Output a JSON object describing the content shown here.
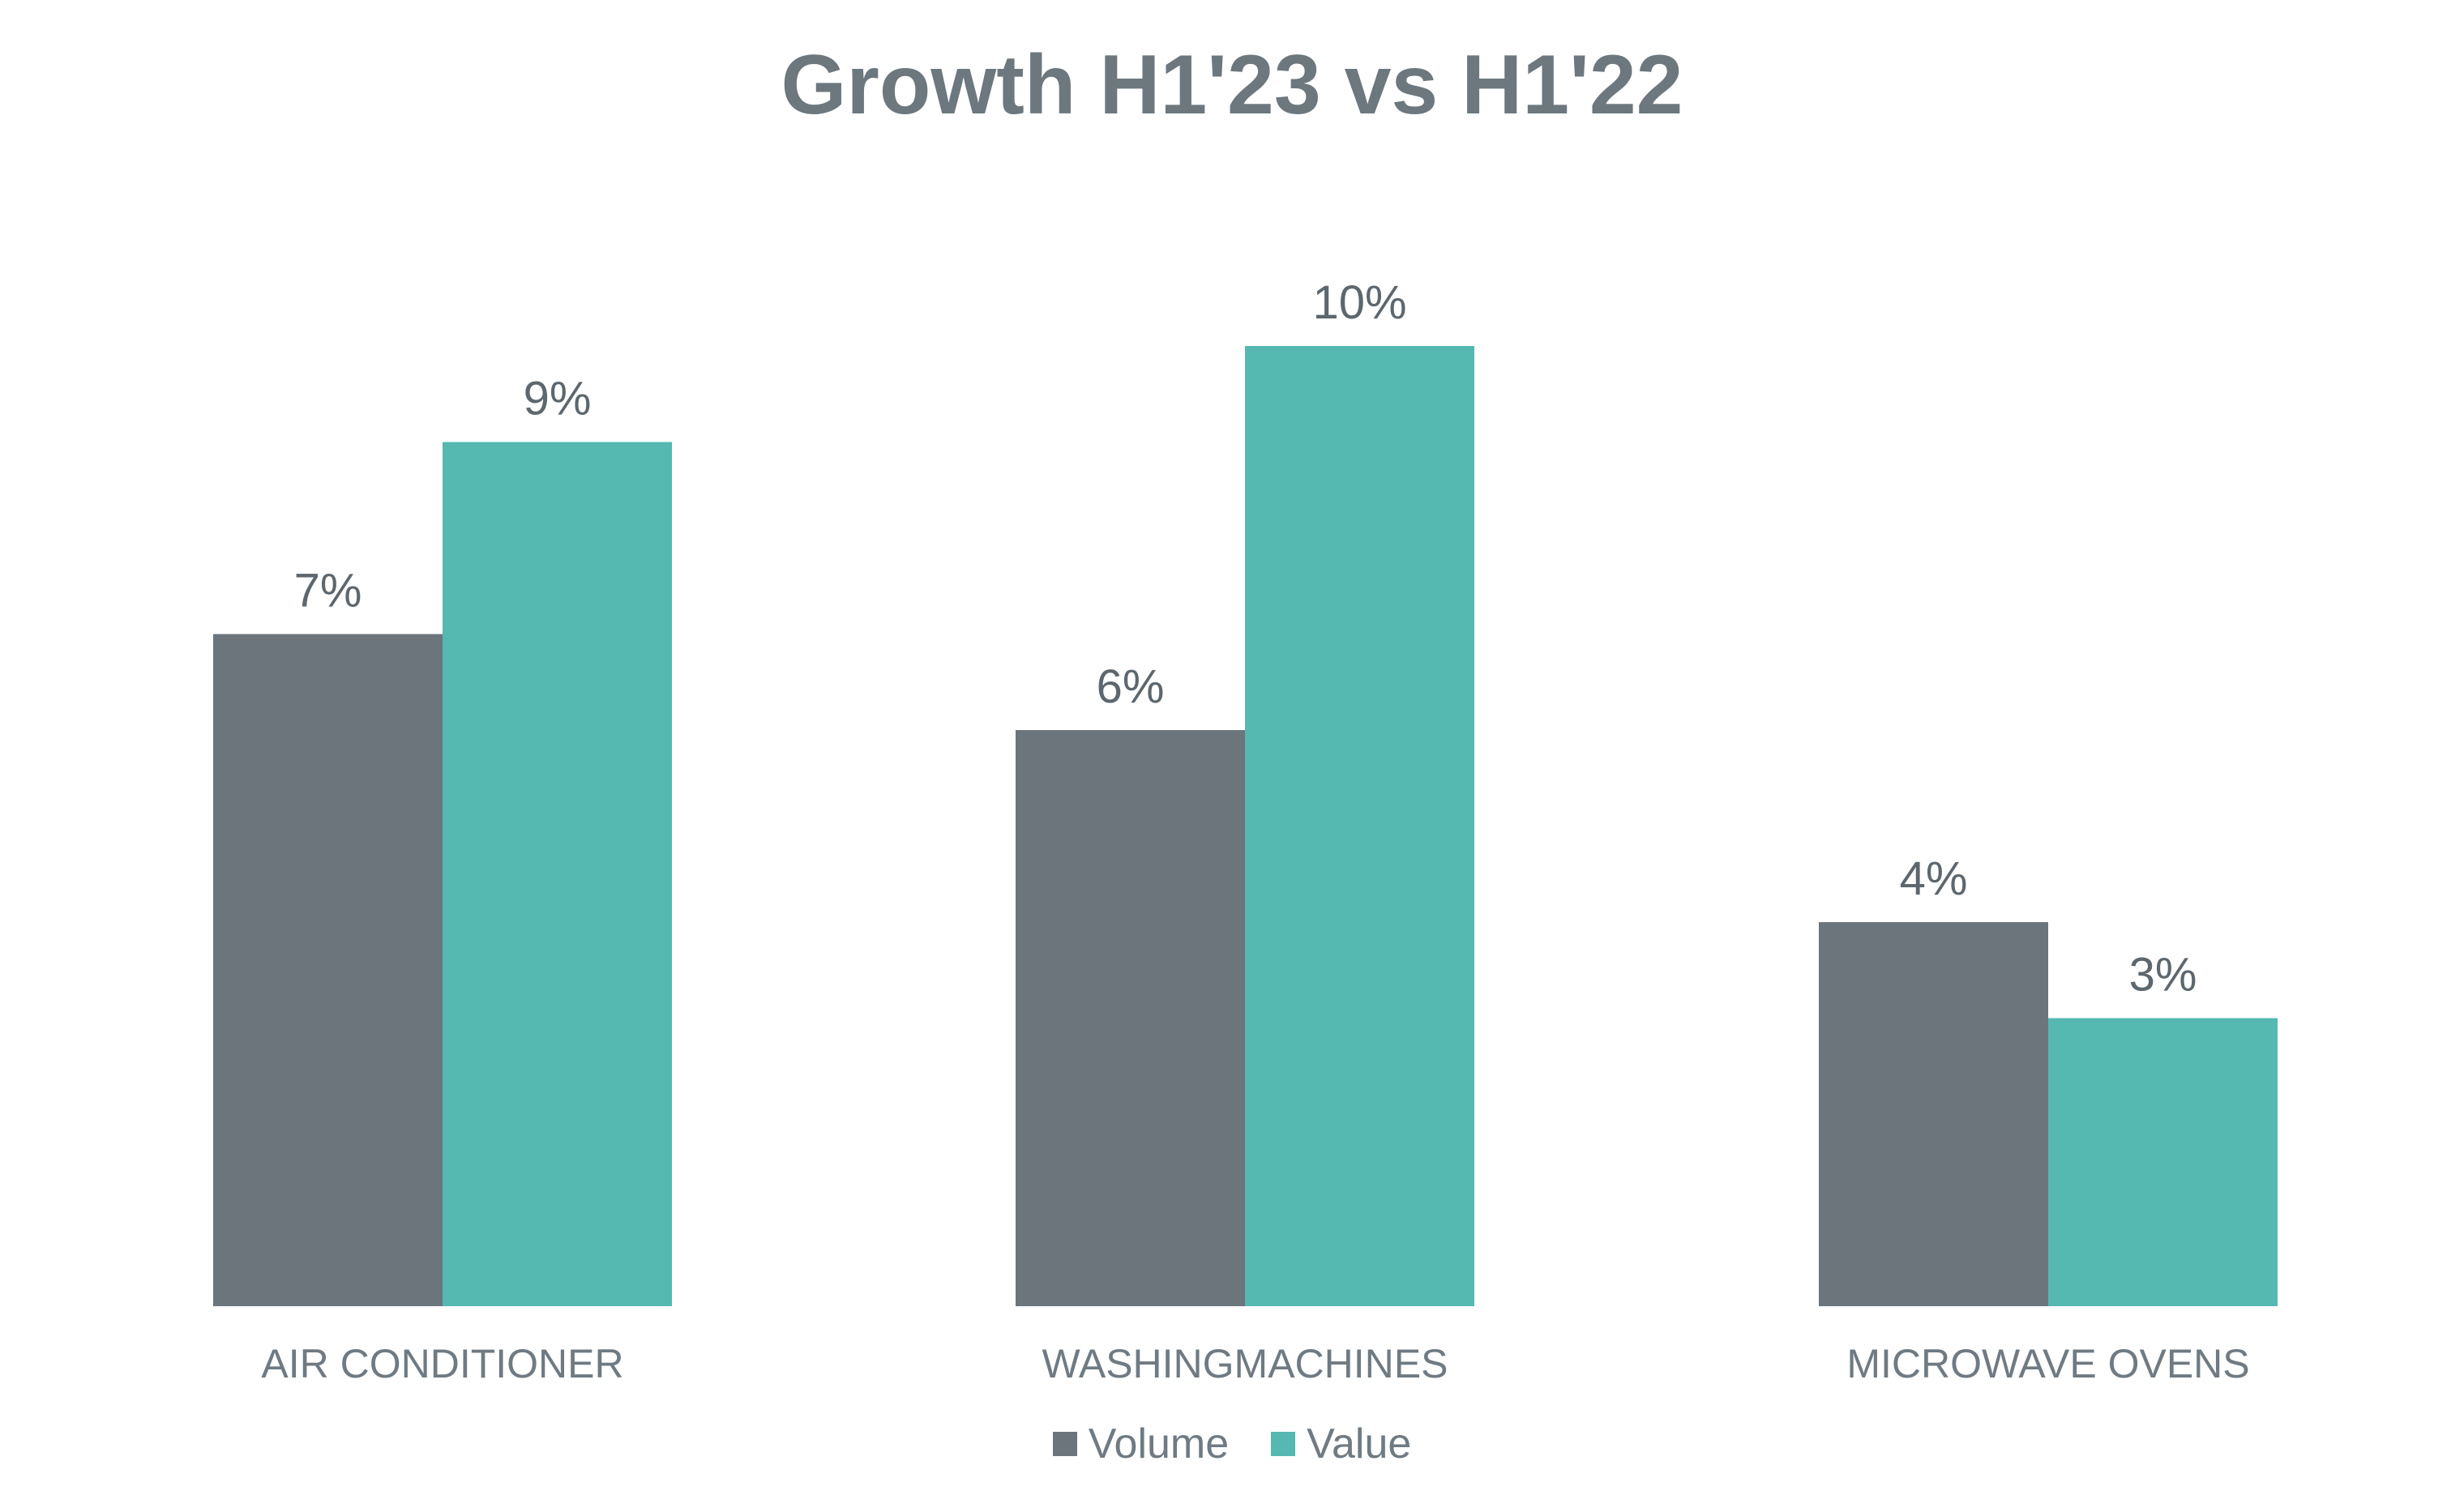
{
  "chart_data": {
    "type": "bar",
    "title": "Growth H1'23 vs H1'22",
    "categories": [
      "AIR CONDITIONER",
      "WASHINGMACHINES",
      "MICROWAVE OVENS"
    ],
    "series": [
      {
        "name": "Volume",
        "values": [
          7,
          6,
          4
        ],
        "labels": [
          "7%",
          "6%",
          "4%"
        ],
        "color": "#6b757b"
      },
      {
        "name": "Value",
        "values": [
          9,
          10,
          3
        ],
        "labels": [
          "9%",
          "10%",
          "3%"
        ],
        "color": "#55b8b1"
      }
    ],
    "unit": "%",
    "ylim": [
      0,
      10
    ],
    "grid": false,
    "legend": "bottom-center"
  }
}
